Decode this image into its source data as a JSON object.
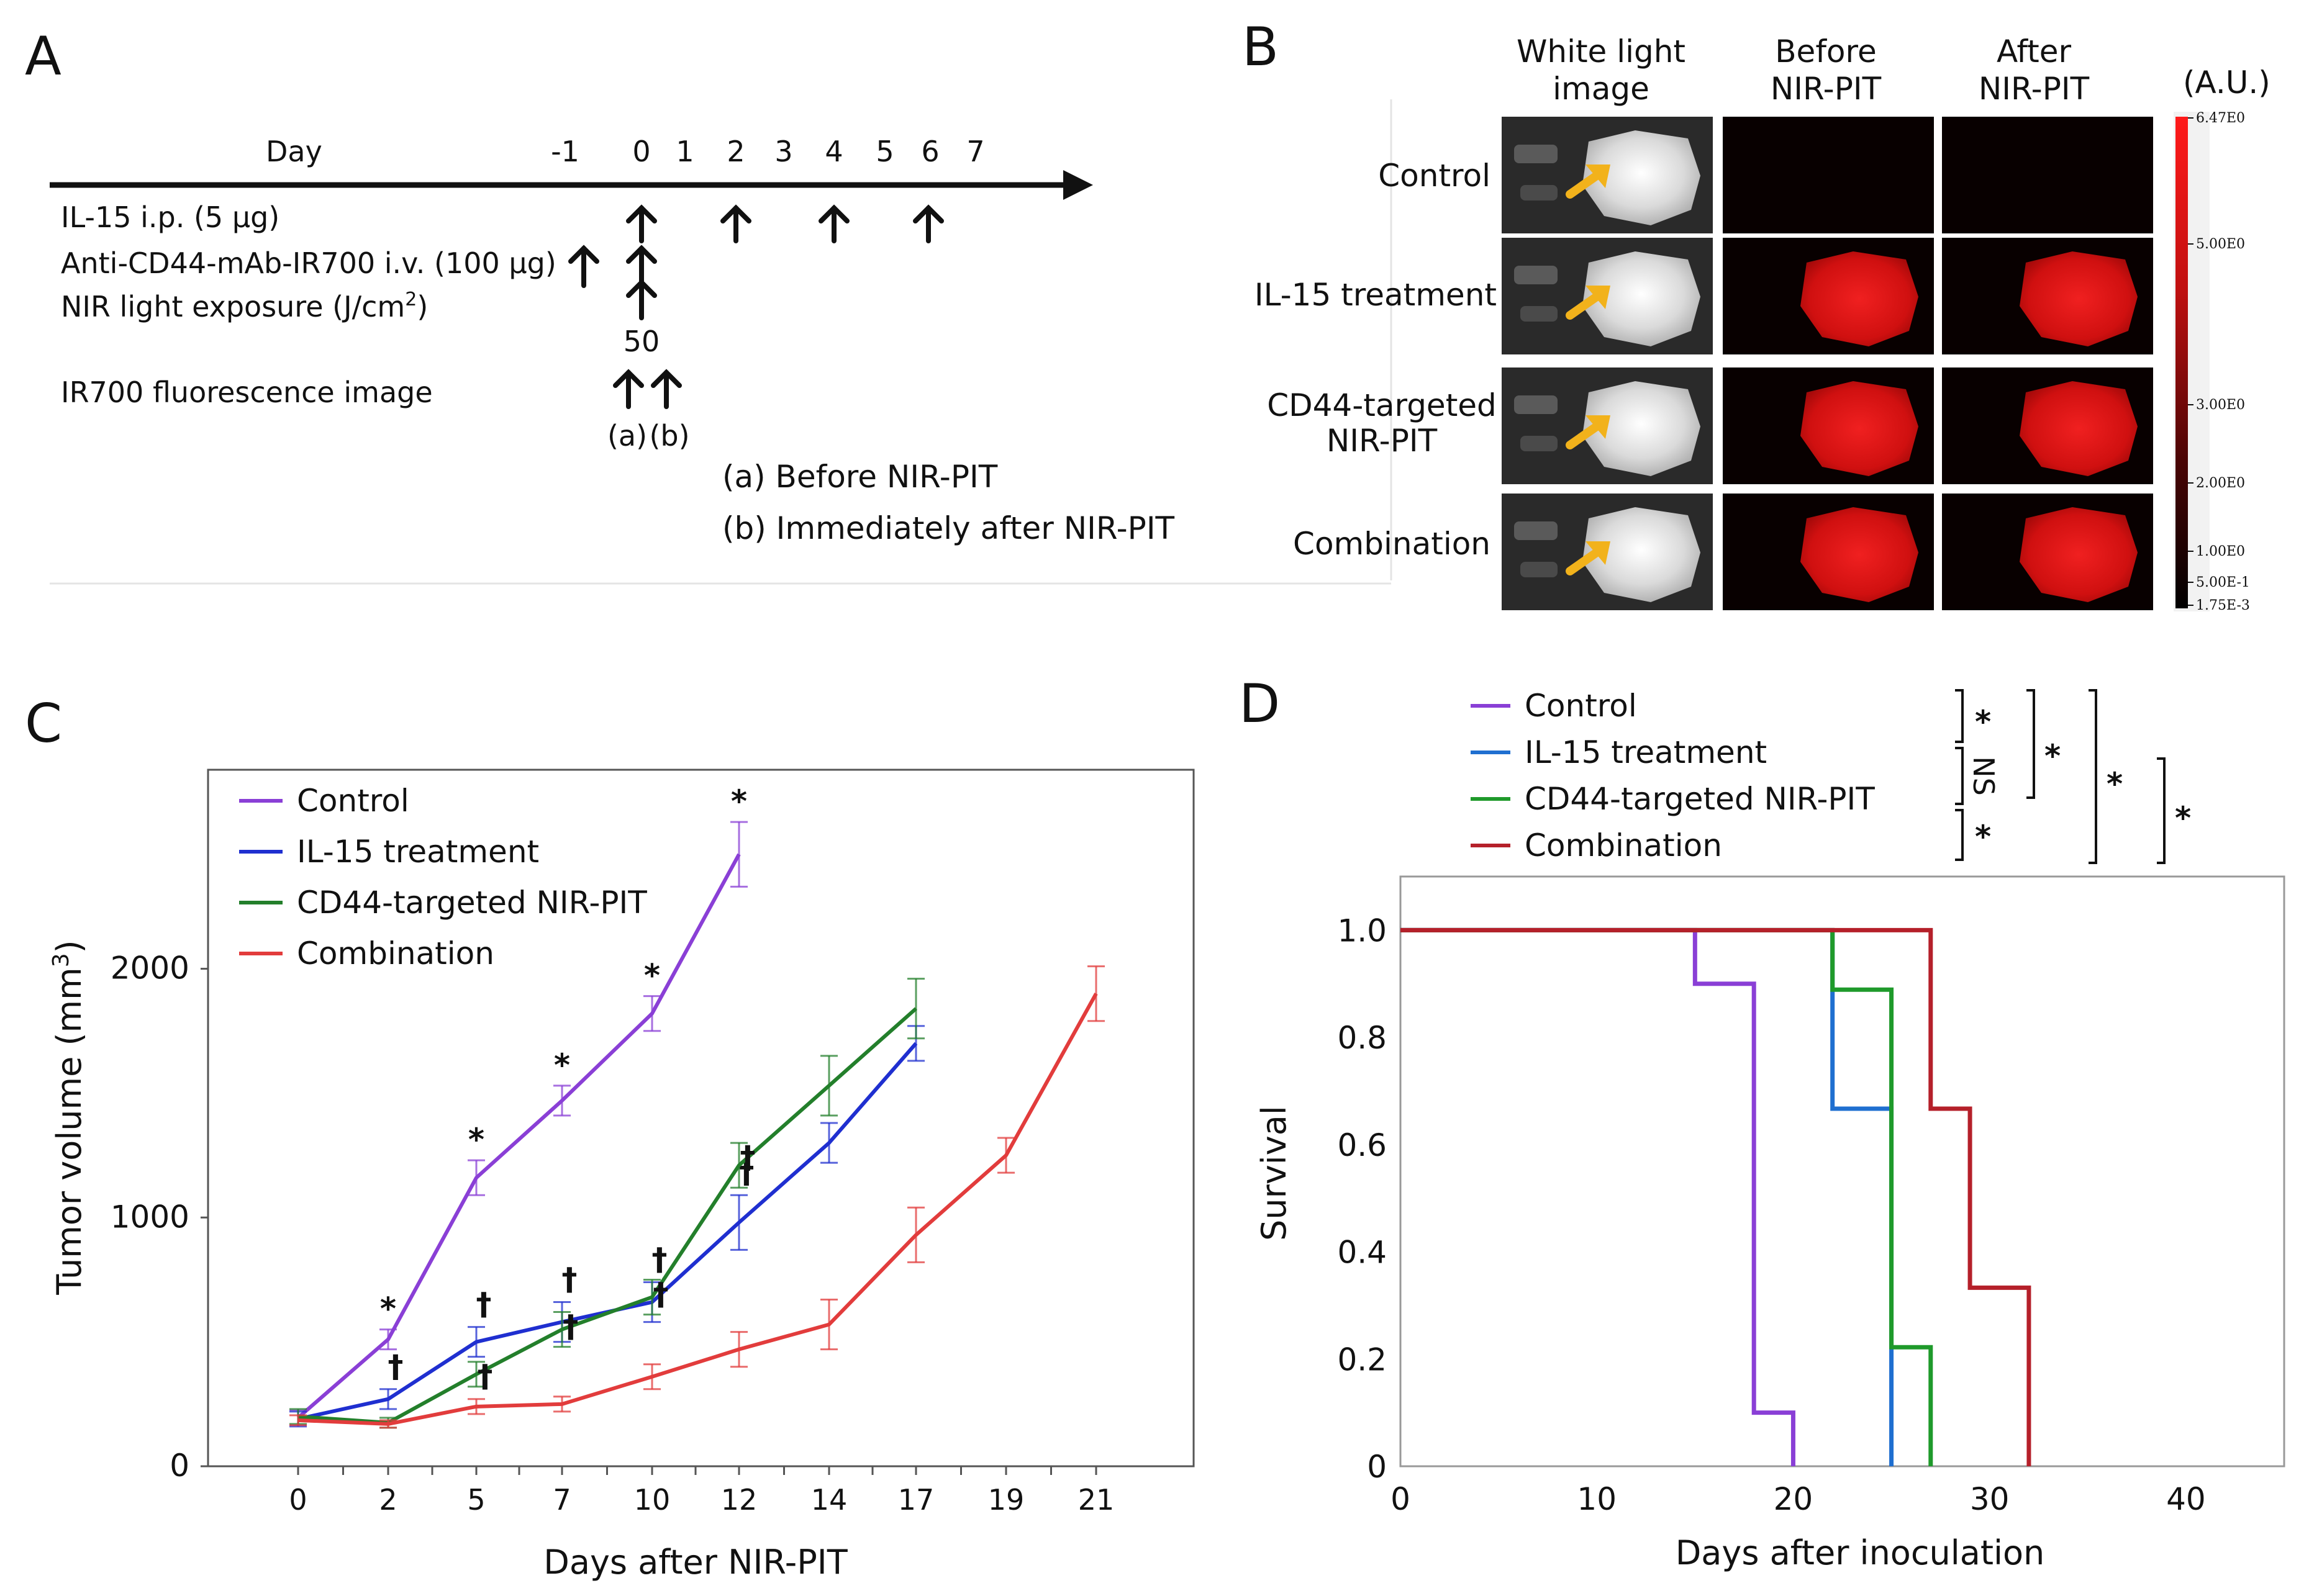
{
  "panelA": {
    "letter": "A",
    "day_label": "Day",
    "days": [
      "-1",
      "0",
      "1",
      "2",
      "3",
      "4",
      "5",
      "6",
      "7"
    ],
    "rows": [
      "IL-15 i.p. (5 μg)",
      "Anti-CD44-mAb-IR700  i.v. (100 μg)",
      "NIR light exposure (J/cm",
      "IR700 fluorescence image"
    ],
    "superscript": "2",
    "close_paren": ")",
    "dose": "50",
    "tags": [
      "(a)",
      "(b)"
    ],
    "notes": [
      "(a) Before NIR-PIT",
      "(b) Immediately after NIR-PIT"
    ]
  },
  "panelB": {
    "letter": "B",
    "columns": [
      [
        "White light",
        "image"
      ],
      [
        "Before",
        "NIR-PIT"
      ],
      [
        "After",
        "NIR-PIT"
      ]
    ],
    "rows": [
      {
        "label": [
          "Control"
        ],
        "fluor_before": 0,
        "fluor_after": 0
      },
      {
        "label": [
          "IL-15 treatment"
        ],
        "fluor_before": 1,
        "fluor_after": 1
      },
      {
        "label": [
          "CD44-targeted",
          "NIR-PIT"
        ],
        "fluor_before": 1,
        "fluor_after": 1
      },
      {
        "label": [
          "Combination"
        ],
        "fluor_before": 1,
        "fluor_after": 1
      }
    ],
    "scale_unit": "(A.U.)",
    "scale_ticks": [
      {
        "label": "6.47E0",
        "v": 6.47
      },
      {
        "label": "5.00E0",
        "v": 5.0
      },
      {
        "label": "3.00E0",
        "v": 3.0
      },
      {
        "label": "2.00E0",
        "v": 2.0
      },
      {
        "label": "1.00E0",
        "v": 1.0
      },
      {
        "label": "5.00E-1",
        "v": 0.5
      },
      {
        "label": "1.75E-3",
        "v": 0.00175
      }
    ],
    "arrow_color": "#f2b21b"
  },
  "chart_data": [
    {
      "panel": "C",
      "type": "line",
      "ylabel": "Tumor volume (mm",
      "ylabel_sup": "3",
      "ylabel_close": ")",
      "xlabel": "Days after NIR-PIT",
      "x_ticks": [
        "0",
        "2",
        "5",
        "7",
        "10",
        "12",
        "14",
        "17",
        "19",
        "21"
      ],
      "y_ticks": [
        0,
        1000,
        2000
      ],
      "ylim": [
        0,
        2800
      ],
      "legend_placement": "top-left",
      "series": [
        {
          "name": "Control",
          "color": "#8a3fd6",
          "x": [
            0,
            2,
            5,
            7,
            10,
            12
          ],
          "y": [
            195,
            510,
            1160,
            1470,
            1820,
            2460
          ],
          "err": [
            30,
            40,
            70,
            60,
            70,
            130
          ],
          "marks": [
            "",
            "*",
            "*",
            "*",
            "*",
            "*"
          ]
        },
        {
          "name": "IL-15 treatment",
          "color": "#1f2fd0",
          "x": [
            0,
            2,
            5,
            7,
            10,
            12,
            14,
            17
          ],
          "y": [
            190,
            270,
            500,
            580,
            660,
            980,
            1300,
            1700
          ],
          "err": [
            30,
            40,
            60,
            80,
            80,
            110,
            80,
            70
          ],
          "marks": [
            "",
            "†",
            "†",
            "†",
            "†",
            "†",
            "",
            ""
          ]
        },
        {
          "name": "CD44-targeted NIR-PIT",
          "color": "#237f2b",
          "x": [
            0,
            2,
            5,
            7,
            10,
            12,
            14,
            17
          ],
          "y": [
            200,
            175,
            370,
            550,
            680,
            1210,
            1530,
            1840
          ],
          "err": [
            30,
            20,
            50,
            70,
            70,
            90,
            120,
            120
          ],
          "marks": [
            "",
            "",
            "†",
            "†",
            "†",
            "†",
            "",
            ""
          ]
        },
        {
          "name": "Combination",
          "color": "#e23c3c",
          "x": [
            0,
            2,
            5,
            7,
            10,
            12,
            14,
            17,
            19,
            21
          ],
          "y": [
            185,
            170,
            240,
            250,
            360,
            470,
            570,
            930,
            1250,
            1900
          ],
          "err": [
            20,
            15,
            30,
            30,
            50,
            70,
            100,
            110,
            70,
            110
          ],
          "marks": [
            "",
            "",
            "",
            "",
            "",
            "",
            "",
            "",
            "",
            ""
          ]
        }
      ]
    },
    {
      "panel": "D",
      "type": "line",
      "ylabel": "Survival",
      "xlabel": "Days after inoculation",
      "x_ticks": [
        "0",
        "10",
        "20",
        "30",
        "40"
      ],
      "y_ticks": [
        "0",
        "0.2",
        "0.4",
        "0.6",
        "0.8",
        "1.0"
      ],
      "xlim": [
        0,
        45
      ],
      "ylim": [
        0,
        1.1
      ],
      "legend_placement": "top-left",
      "series": [
        {
          "name": "Control",
          "color": "#8a3fd6",
          "steps": [
            [
              0,
              1.0
            ],
            [
              15,
              0.9
            ],
            [
              18,
              0.1
            ],
            [
              20,
              0
            ]
          ]
        },
        {
          "name": "IL-15 treatment",
          "color": "#1f6fd0",
          "steps": [
            [
              0,
              1.0
            ],
            [
              22,
              0.667
            ],
            [
              25,
              0
            ]
          ]
        },
        {
          "name": "CD44-targeted NIR-PIT",
          "color": "#1f9a2b",
          "steps": [
            [
              0,
              1.0
            ],
            [
              22,
              0.889
            ],
            [
              25,
              0.222
            ],
            [
              27,
              0
            ]
          ]
        },
        {
          "name": "Combination",
          "color": "#b5202a",
          "steps": [
            [
              0,
              1.0
            ],
            [
              27,
              0.667
            ],
            [
              29,
              0.333
            ],
            [
              32,
              0
            ]
          ]
        }
      ],
      "significance": [
        "*",
        "NS",
        "*",
        "*",
        "*",
        "*"
      ]
    }
  ]
}
